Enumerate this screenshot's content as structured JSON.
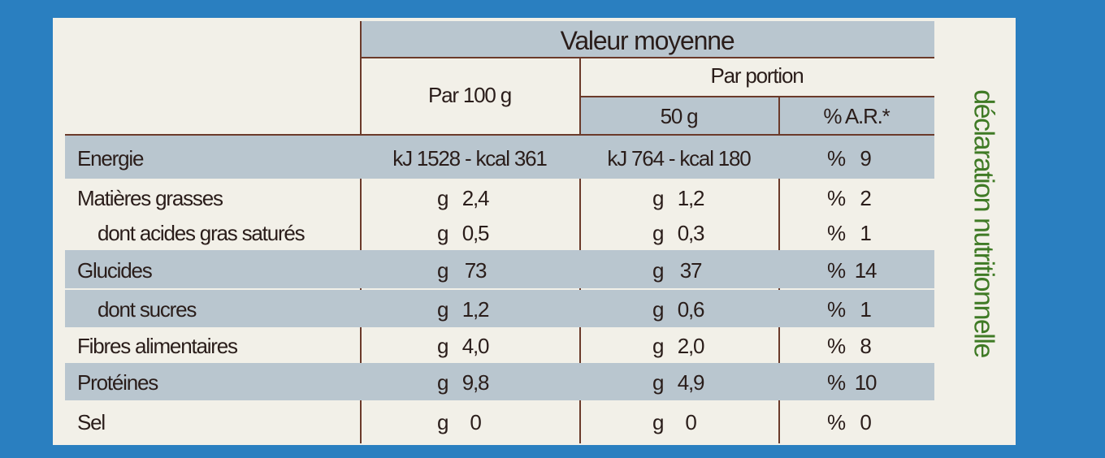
{
  "header": {
    "title": "Valeur moyenne",
    "per_100g": "Par 100 g",
    "per_portion": "Par portion",
    "portion_size": "50 g",
    "ar": "% A.R.*"
  },
  "side_text": "déclaration nutritionnelle",
  "rows": [
    {
      "label": "Energie",
      "per_100g": "kJ 1528 - kcal 361",
      "per_portion": "kJ 764 - kcal 180",
      "ar": {
        "unit": "%",
        "value": "9"
      }
    },
    {
      "label": "Matières grasses",
      "per_100g": {
        "unit": "g",
        "value": "2,4"
      },
      "per_portion": {
        "unit": "g",
        "value": "1,2"
      },
      "ar": {
        "unit": "%",
        "value": "2"
      }
    },
    {
      "label": "dont acides gras saturés",
      "per_100g": {
        "unit": "g",
        "value": "0,5"
      },
      "per_portion": {
        "unit": "g",
        "value": "0,3"
      },
      "ar": {
        "unit": "%",
        "value": "1"
      }
    },
    {
      "label": "Glucides",
      "per_100g": {
        "unit": "g",
        "value": "73"
      },
      "per_portion": {
        "unit": "g",
        "value": "37"
      },
      "ar": {
        "unit": "%",
        "value": "14"
      }
    },
    {
      "label": "dont sucres",
      "per_100g": {
        "unit": "g",
        "value": "1,2"
      },
      "per_portion": {
        "unit": "g",
        "value": "0,6"
      },
      "ar": {
        "unit": "%",
        "value": "1"
      }
    },
    {
      "label": "Fibres alimentaires",
      "per_100g": {
        "unit": "g",
        "value": "4,0"
      },
      "per_portion": {
        "unit": "g",
        "value": "2,0"
      },
      "ar": {
        "unit": "%",
        "value": "8"
      }
    },
    {
      "label": "Protéines",
      "per_100g": {
        "unit": "g",
        "value": "9,8"
      },
      "per_portion": {
        "unit": "g",
        "value": "4,9"
      },
      "ar": {
        "unit": "%",
        "value": "10"
      }
    },
    {
      "label": "Sel",
      "per_100g": {
        "unit": "g",
        "value": "0"
      },
      "per_portion": {
        "unit": "g",
        "value": "0"
      },
      "ar": {
        "unit": "%",
        "value": "0"
      }
    }
  ]
}
